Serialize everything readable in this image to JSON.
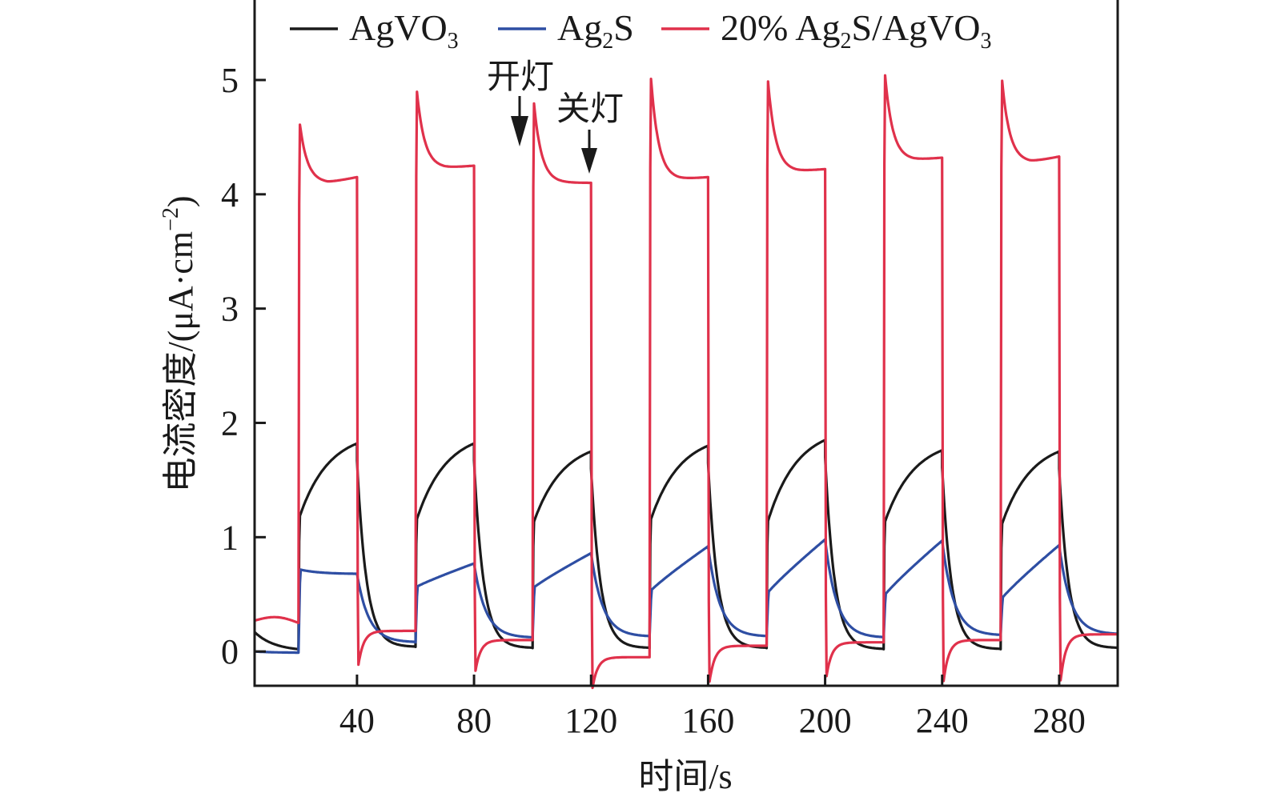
{
  "chart_data": {
    "type": "line",
    "title": "",
    "xlabel": "时间/s",
    "ylabel_main": "电流密度/(μA·cm",
    "ylabel_sup": "−2",
    "ylabel_close": ")",
    "xlim": [
      5,
      300
    ],
    "ylim": [
      -0.3,
      5.7
    ],
    "xticks": [
      40,
      80,
      120,
      160,
      200,
      240,
      280
    ],
    "yticks": [
      0,
      1,
      2,
      3,
      4,
      5
    ],
    "grid": false,
    "legend_position": "top",
    "light_on_times": [
      20,
      60,
      100,
      140,
      180,
      220,
      260
    ],
    "light_off_times": [
      40,
      80,
      120,
      160,
      200,
      240,
      280
    ],
    "annotations": [
      {
        "text": "开灯",
        "x": 96,
        "points_to": "light-on"
      },
      {
        "text": "关灯",
        "x": 120,
        "points_to": "light-off"
      }
    ],
    "series": [
      {
        "name": "AgVO3",
        "label_base": "AgVO",
        "label_sub": "3",
        "label_tail": "",
        "color": "#1a1a1a",
        "initial": 0.17,
        "dark_start_end": 0.02,
        "on_start": [
          1.15,
          1.12,
          1.1,
          1.12,
          1.1,
          1.1,
          1.08
        ],
        "on_end": [
          1.82,
          1.82,
          1.75,
          1.8,
          1.85,
          1.76,
          1.75
        ],
        "dark_end": [
          0.04,
          0.03,
          0.03,
          0.03,
          0.02,
          0.02,
          0.03
        ]
      },
      {
        "name": "Ag2S",
        "label_base": "Ag",
        "label_sub": "2",
        "label_tail": "S",
        "color": "#2e4ea3",
        "initial": 0.0,
        "dark_start_end": -0.01,
        "on_start": [
          0.72,
          0.56,
          0.55,
          0.52,
          0.5,
          0.48,
          0.45
        ],
        "on_end": [
          0.68,
          0.77,
          0.86,
          0.92,
          0.98,
          0.97,
          0.93
        ],
        "dark_end": [
          0.08,
          0.12,
          0.13,
          0.13,
          0.12,
          0.14,
          0.15
        ]
      },
      {
        "name": "20% Ag2S/AgVO3",
        "label_base": "20% Ag",
        "label_sub": "2",
        "label_tail": "S/AgVO",
        "label_sub2": "3",
        "color": "#e0314b",
        "initial": 0.27,
        "dark_start_end": 0.25,
        "on_peak": [
          4.65,
          4.95,
          4.85,
          5.08,
          5.05,
          5.1,
          5.05
        ],
        "on_plateau": [
          4.1,
          4.23,
          4.1,
          4.13,
          4.2,
          4.3,
          4.28
        ],
        "on_end": [
          4.15,
          4.25,
          4.1,
          4.15,
          4.22,
          4.32,
          4.33
        ],
        "dark_dip": [
          -0.15,
          -0.2,
          -0.35,
          -0.3,
          -0.25,
          -0.3,
          -0.3
        ],
        "dark_end": [
          0.18,
          0.1,
          -0.05,
          0.05,
          0.08,
          0.1,
          0.15
        ]
      }
    ]
  }
}
